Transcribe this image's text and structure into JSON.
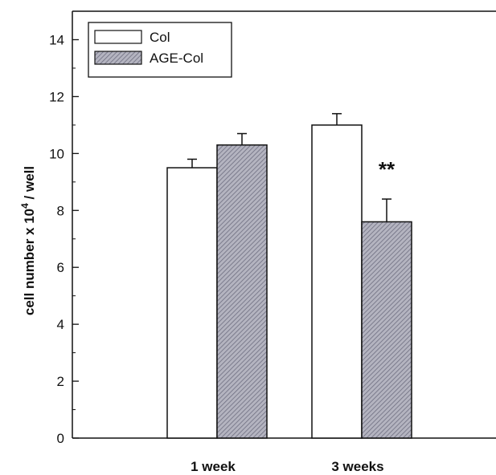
{
  "chart_data": {
    "type": "bar",
    "categories": [
      "1 week",
      "3 weeks"
    ],
    "series": [
      {
        "name": "Col",
        "values": [
          9.5,
          11.0
        ],
        "errors": [
          0.3,
          0.4
        ],
        "color": "#ffffff",
        "pattern": "none"
      },
      {
        "name": "AGE-Col",
        "values": [
          10.3,
          7.6
        ],
        "errors": [
          0.4,
          0.8
        ],
        "color": "#8a8a9a",
        "pattern": "hatch"
      }
    ],
    "ylabel": {
      "prefix": "cell number x 10",
      "superscript": "4",
      "suffix": " / well"
    },
    "ylim": [
      0,
      15
    ],
    "yticks": [
      0,
      2,
      4,
      6,
      8,
      10,
      12,
      14
    ],
    "legend": "top-left",
    "grid": false,
    "annotations": [
      {
        "text": "**",
        "category": "3 weeks",
        "series": "AGE-Col"
      }
    ]
  }
}
